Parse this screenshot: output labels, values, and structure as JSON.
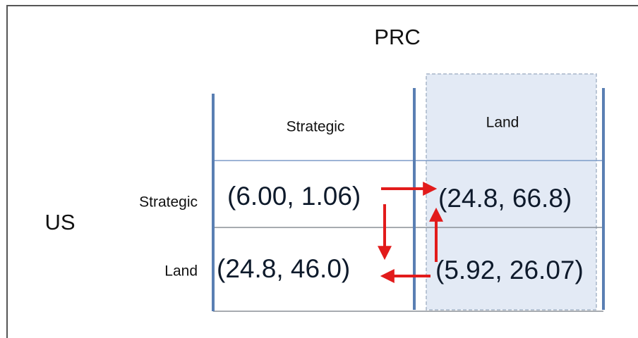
{
  "column_player": "PRC",
  "row_player": "US",
  "columns": [
    "Strategic",
    "Land"
  ],
  "rows": [
    "Strategic",
    "Land"
  ],
  "cells": [
    [
      "(6.00, 1.06)",
      "(24.8, 66.8)"
    ],
    [
      "(24.8, 46.0)",
      "(5.92, 26.07)"
    ]
  ]
}
